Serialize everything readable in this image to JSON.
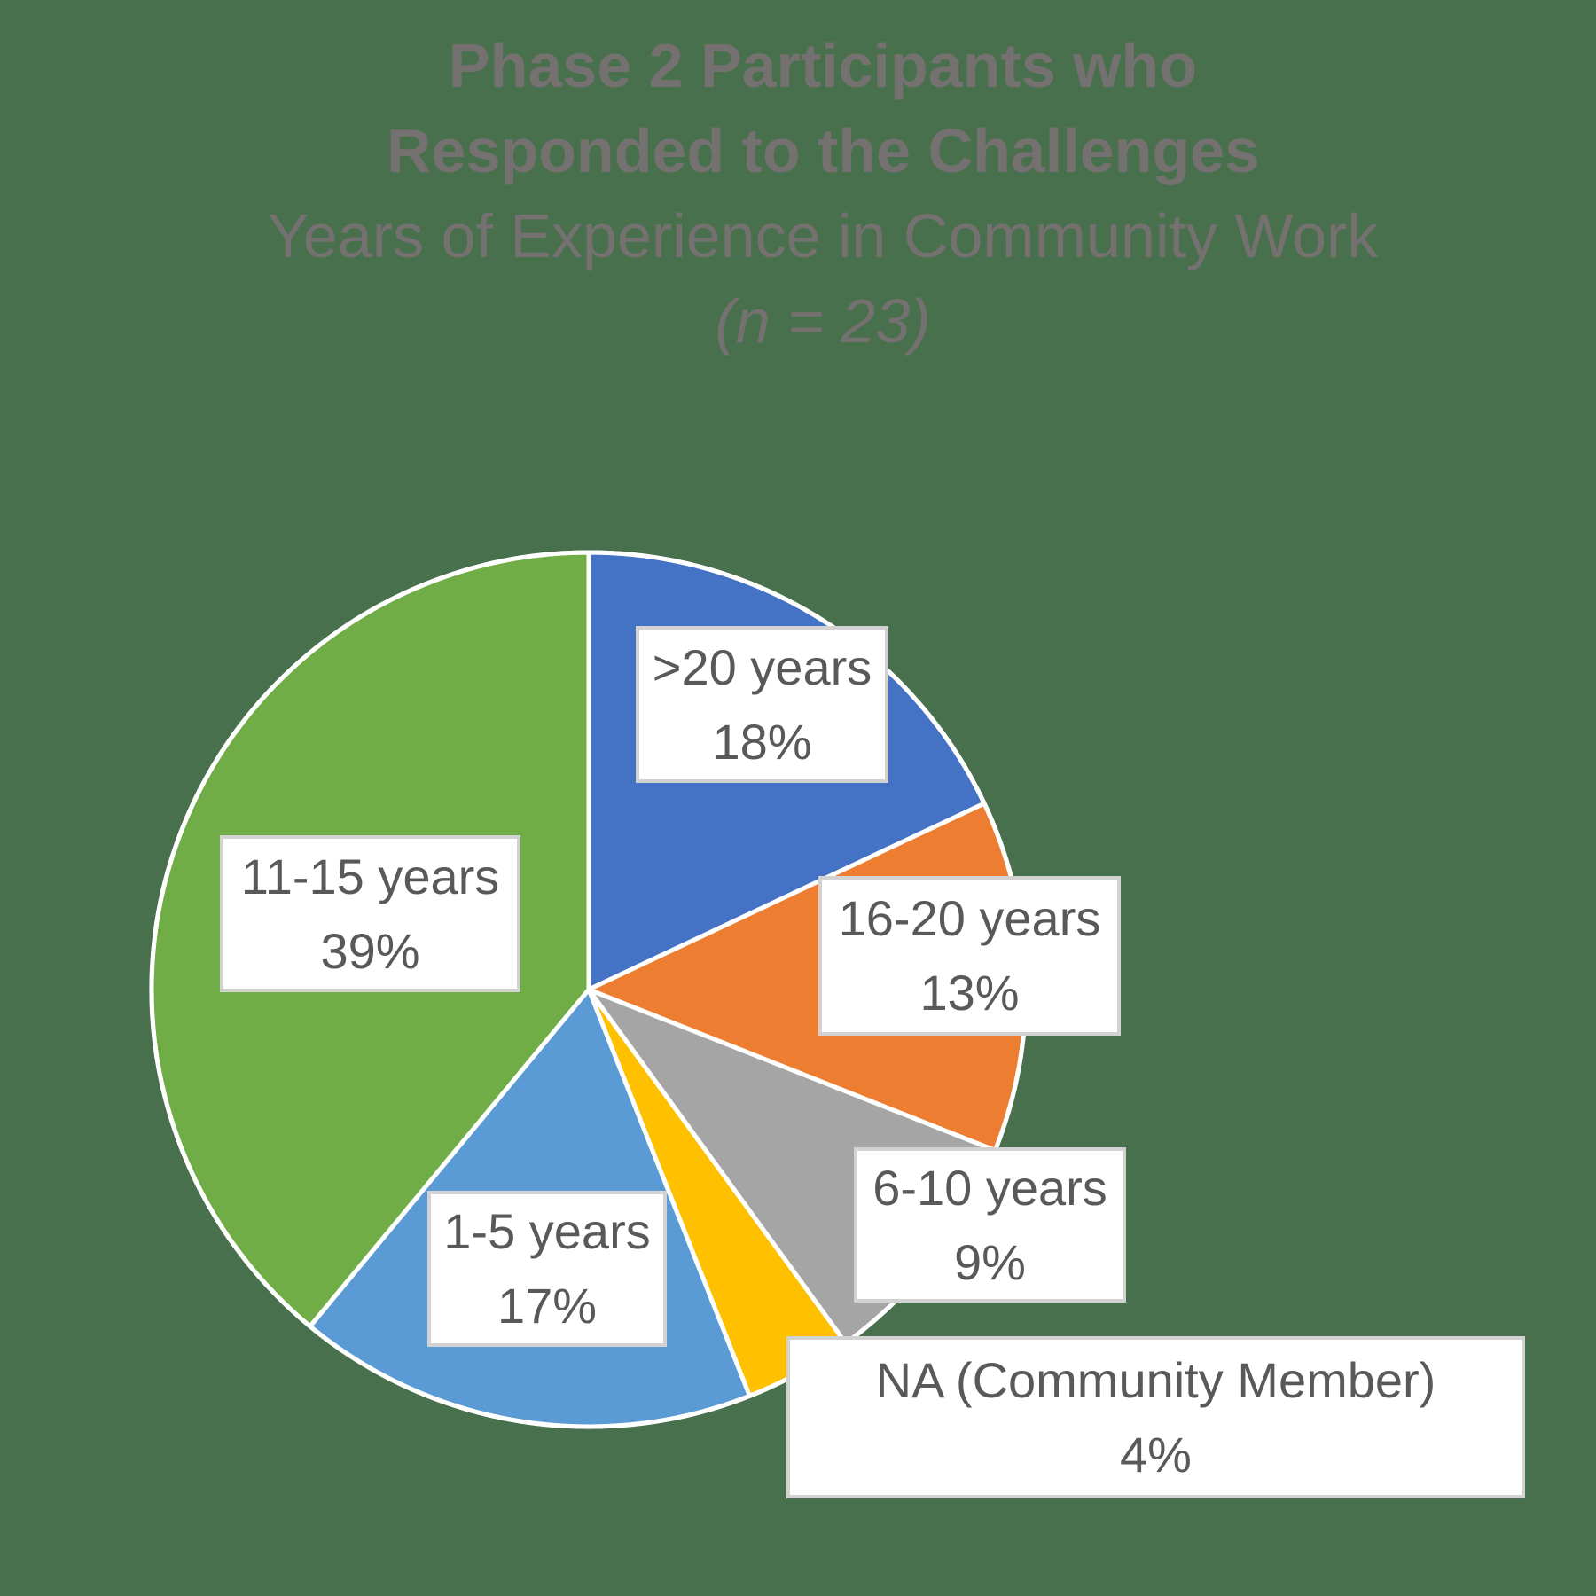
{
  "title": {
    "line1": "Phase 2 Participants who",
    "line2": "Responded to the Challenges",
    "line3": "Years of Experience in Community Work",
    "line4": "(n = 23)"
  },
  "colors": {
    "background": "#48704C",
    "title_text": "#767171",
    "label_text": "#595959",
    "label_box_fill": "#FFFFFF",
    "label_box_border": "#D2D2D2",
    "slice_border": "#FFFFFF"
  },
  "chart_data": {
    "type": "pie",
    "title": "Phase 2 Participants who Responded to the Challenges",
    "subtitle": "Years of Experience in Community Work",
    "sample_note": "(n = 23)",
    "n": 23,
    "start_angle_deg": 0,
    "direction": "clockwise-from-top",
    "legend_position": "none",
    "slices": [
      {
        "label": ">20 years",
        "pct_label": "18%",
        "value": 18,
        "color": "#4472C4"
      },
      {
        "label": "16-20 years",
        "pct_label": "13%",
        "value": 13,
        "color": "#ED7D31"
      },
      {
        "label": "6-10 years",
        "pct_label": "9%",
        "value": 9,
        "color": "#A5A5A5"
      },
      {
        "label": "NA (Community Member)",
        "pct_label": "4%",
        "value": 4,
        "color": "#FFC000"
      },
      {
        "label": "1-5 years",
        "pct_label": "17%",
        "value": 17,
        "color": "#5B9BD5"
      },
      {
        "label": "11-15 years",
        "pct_label": "39%",
        "value": 39,
        "color": "#70AD47"
      }
    ]
  }
}
